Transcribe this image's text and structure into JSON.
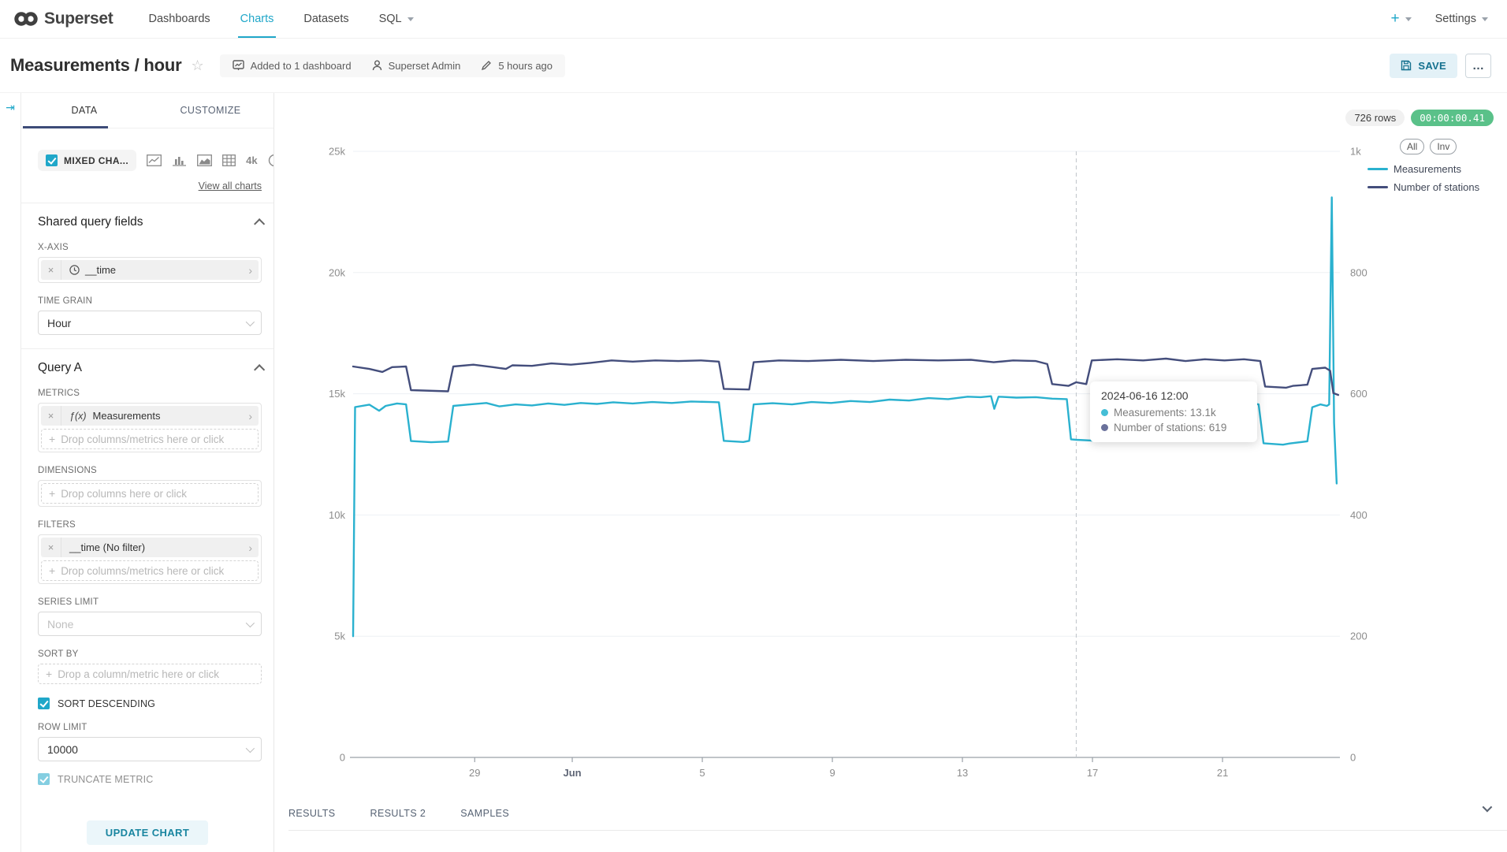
{
  "icons": {
    "close": "×",
    "plus": "+",
    "ellipsis": "…",
    "collapse": "⇥"
  },
  "navbar": {
    "brand": "Superset",
    "items": [
      {
        "label": "Dashboards",
        "active": false
      },
      {
        "label": "Charts",
        "active": true
      },
      {
        "label": "Datasets",
        "active": false
      },
      {
        "label": "SQL",
        "active": false
      }
    ],
    "plus": "+",
    "settings": "Settings"
  },
  "header": {
    "title": "Measurements / hour",
    "star": "☆",
    "meta": {
      "dashboards": "Added to 1 dashboard",
      "owner": "Superset Admin",
      "modified": "5 hours ago"
    },
    "save_label": "SAVE",
    "more_label": "…"
  },
  "panel": {
    "tabs": {
      "data": "DATA",
      "customize": "CUSTOMIZE"
    },
    "viz": {
      "selected": "MIXED CHA...",
      "alt_4k": "4k",
      "view_all": "View all charts"
    },
    "shared": {
      "title": "Shared query fields",
      "xaxis_label": "X-AXIS",
      "xaxis_value": "__time",
      "timegrain_label": "TIME GRAIN",
      "timegrain_value": "Hour"
    },
    "query_a": {
      "title": "Query A",
      "metrics_label": "METRICS",
      "metric_fn": "ƒ(x)",
      "metric_value": "Measurements",
      "drop_cols_metrics": "Drop columns/metrics here or click",
      "dimensions_label": "DIMENSIONS",
      "drop_cols": "Drop columns here or click",
      "filters_label": "FILTERS",
      "filter_value": "__time (No filter)",
      "series_limit_label": "SERIES LIMIT",
      "series_limit_value": "None",
      "sort_by_label": "SORT BY",
      "drop_one": "Drop a column/metric here or click",
      "sort_descending": "SORT DESCENDING",
      "row_limit_label": "ROW LIMIT",
      "row_limit_value": "10000",
      "truncate_metric": "TRUNCATE METRIC"
    },
    "update_button": "UPDATE CHART"
  },
  "main": {
    "rows_badge": "726 rows",
    "timer_badge": "00:00:00.41"
  },
  "tooltip": {
    "title": "2024-06-16 12:00",
    "rows": [
      {
        "label": "Measurements: 13.1k",
        "color": "#45BED6"
      },
      {
        "label": "Number of stations: 619",
        "color": "#6A719B"
      }
    ]
  },
  "results": {
    "tabs": [
      "RESULTS",
      "RESULTS 2",
      "SAMPLES"
    ]
  },
  "chart_data": {
    "type": "line",
    "legend": {
      "buttons": [
        "All",
        "Inv"
      ],
      "position": "top-right"
    },
    "x_axis": {
      "domain_days": [
        0,
        30.35
      ],
      "context": "days shown from late May to late June 2024, hourly grain",
      "ticks": [
        {
          "pos": 3.74,
          "label": "29",
          "bold": false
        },
        {
          "pos": 6.74,
          "label": "Jun",
          "bold": true
        },
        {
          "pos": 10.74,
          "label": "5",
          "bold": false
        },
        {
          "pos": 14.74,
          "label": "9",
          "bold": false
        },
        {
          "pos": 18.74,
          "label": "13",
          "bold": false
        },
        {
          "pos": 22.74,
          "label": "17",
          "bold": false
        },
        {
          "pos": 26.74,
          "label": "21",
          "bold": false
        }
      ]
    },
    "y_left": {
      "range": [
        0,
        25000
      ],
      "ticks": [
        0,
        5000,
        10000,
        15000,
        20000,
        25000
      ],
      "tick_labels": [
        "0",
        "5k",
        "10k",
        "15k",
        "20k",
        "25k"
      ]
    },
    "y_right": {
      "range": [
        0,
        1000
      ],
      "ticks": [
        0,
        200,
        400,
        600,
        800,
        1000
      ],
      "tick_labels": [
        "0",
        "200",
        "400",
        "600",
        "800",
        "1k"
      ]
    },
    "crosshair_pos": 22.24,
    "grid": true,
    "series": [
      {
        "name": "Measurements",
        "axis": "left",
        "color": "#2AB1CF",
        "points": [
          [
            0,
            5000
          ],
          [
            0.06,
            14450
          ],
          [
            0.5,
            14550
          ],
          [
            0.8,
            14300
          ],
          [
            1.0,
            14500
          ],
          [
            1.35,
            14600
          ],
          [
            1.63,
            14560
          ],
          [
            1.78,
            13050
          ],
          [
            2.4,
            13000
          ],
          [
            2.92,
            13030
          ],
          [
            3.08,
            14500
          ],
          [
            3.6,
            14560
          ],
          [
            4.1,
            14620
          ],
          [
            4.5,
            14480
          ],
          [
            5.0,
            14560
          ],
          [
            5.5,
            14520
          ],
          [
            6.0,
            14600
          ],
          [
            6.5,
            14540
          ],
          [
            7.0,
            14620
          ],
          [
            7.5,
            14580
          ],
          [
            8.0,
            14650
          ],
          [
            8.6,
            14600
          ],
          [
            9.2,
            14660
          ],
          [
            9.8,
            14620
          ],
          [
            10.4,
            14680
          ],
          [
            11.0,
            14660
          ],
          [
            11.25,
            14650
          ],
          [
            11.4,
            13060
          ],
          [
            12.0,
            13010
          ],
          [
            12.18,
            13060
          ],
          [
            12.32,
            14560
          ],
          [
            12.9,
            14610
          ],
          [
            13.5,
            14560
          ],
          [
            14.1,
            14660
          ],
          [
            14.7,
            14620
          ],
          [
            15.3,
            14700
          ],
          [
            15.9,
            14660
          ],
          [
            16.5,
            14760
          ],
          [
            17.1,
            14720
          ],
          [
            17.7,
            14820
          ],
          [
            18.3,
            14780
          ],
          [
            18.9,
            14880
          ],
          [
            19.3,
            14860
          ],
          [
            19.62,
            14900
          ],
          [
            19.72,
            14380
          ],
          [
            19.85,
            14880
          ],
          [
            20.4,
            14840
          ],
          [
            21.0,
            14860
          ],
          [
            21.5,
            14800
          ],
          [
            21.95,
            14780
          ],
          [
            22.08,
            13120
          ],
          [
            22.24,
            13100
          ],
          [
            22.9,
            13060
          ],
          [
            23.12,
            14600
          ],
          [
            23.7,
            14660
          ],
          [
            24.3,
            14610
          ],
          [
            24.9,
            14700
          ],
          [
            25.5,
            14650
          ],
          [
            26.1,
            14700
          ],
          [
            26.7,
            14640
          ],
          [
            27.3,
            14670
          ],
          [
            27.85,
            14560
          ],
          [
            28.0,
            12960
          ],
          [
            28.6,
            12900
          ],
          [
            28.8,
            12950
          ],
          [
            29.35,
            13040
          ],
          [
            29.5,
            14440
          ],
          [
            29.75,
            14560
          ],
          [
            29.95,
            14500
          ],
          [
            30.02,
            14560
          ],
          [
            30.1,
            23100
          ],
          [
            30.17,
            13800
          ],
          [
            30.25,
            11300
          ]
        ]
      },
      {
        "name": "Number of stations",
        "axis": "right",
        "color": "#444E7C",
        "points": [
          [
            0,
            645
          ],
          [
            0.5,
            641
          ],
          [
            0.9,
            636
          ],
          [
            1.2,
            644
          ],
          [
            1.63,
            645
          ],
          [
            1.78,
            606
          ],
          [
            2.92,
            604
          ],
          [
            3.08,
            645
          ],
          [
            3.7,
            648
          ],
          [
            4.3,
            644
          ],
          [
            4.7,
            641
          ],
          [
            4.9,
            647
          ],
          [
            5.5,
            646
          ],
          [
            6.1,
            650
          ],
          [
            6.7,
            648
          ],
          [
            7.3,
            651
          ],
          [
            7.95,
            655
          ],
          [
            8.6,
            653
          ],
          [
            9.3,
            655
          ],
          [
            10.0,
            654
          ],
          [
            10.7,
            655
          ],
          [
            11.25,
            653
          ],
          [
            11.4,
            608
          ],
          [
            12.18,
            607
          ],
          [
            12.32,
            652
          ],
          [
            13.1,
            655
          ],
          [
            14.0,
            654
          ],
          [
            15.0,
            656
          ],
          [
            16.0,
            654
          ],
          [
            17.0,
            656
          ],
          [
            18.0,
            655
          ],
          [
            19.0,
            656
          ],
          [
            19.7,
            652
          ],
          [
            20.3,
            655
          ],
          [
            21.0,
            654
          ],
          [
            21.35,
            649
          ],
          [
            21.5,
            616
          ],
          [
            22.0,
            613
          ],
          [
            22.24,
            619
          ],
          [
            22.55,
            616
          ],
          [
            22.72,
            655
          ],
          [
            23.5,
            657
          ],
          [
            24.3,
            655
          ],
          [
            25.0,
            658
          ],
          [
            25.6,
            654
          ],
          [
            26.2,
            657
          ],
          [
            26.8,
            655
          ],
          [
            27.4,
            657
          ],
          [
            27.9,
            654
          ],
          [
            28.05,
            612
          ],
          [
            28.7,
            610
          ],
          [
            28.9,
            613
          ],
          [
            29.35,
            615
          ],
          [
            29.5,
            641
          ],
          [
            29.9,
            643
          ],
          [
            30.05,
            638
          ],
          [
            30.15,
            601
          ],
          [
            30.3,
            598
          ]
        ]
      }
    ]
  }
}
